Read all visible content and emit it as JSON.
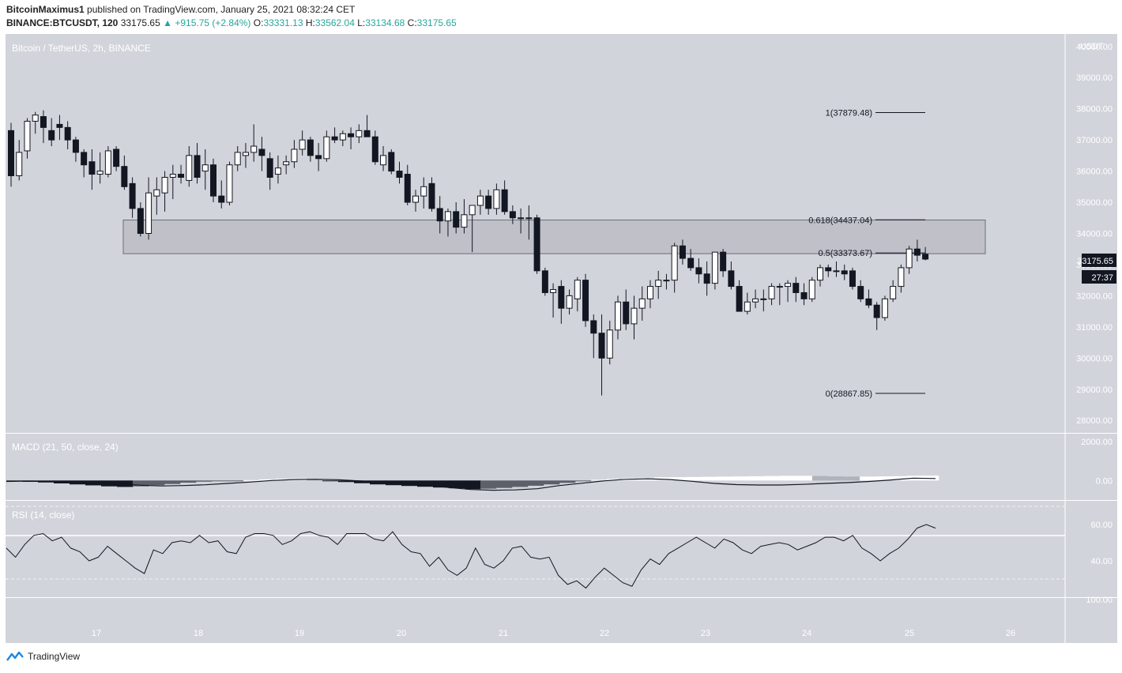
{
  "header": {
    "author": "BitcoinMaximus1",
    "published_text": "published on TradingView.com, January 25, 2021 08:32:24 CET",
    "symbol": "BINANCE:BTCUSDT, 120",
    "last": "33175.65",
    "change": "+915.75 (+2.84%)",
    "o_label": "O:",
    "o": "33331.13",
    "h_label": "H:",
    "h": "33562.04",
    "l_label": "L:",
    "l": "33134.68",
    "c_label": "C:",
    "c": "33175.65"
  },
  "pane_title": "Bitcoin / TetherUS, 2h, BINANCE",
  "price_scale": {
    "currency": "USDT",
    "current_price": "33175.65",
    "countdown": "27:37"
  },
  "macd": {
    "label": "MACD (21, 50, close, 24)",
    "ticks": [
      "2000.00",
      "0.00"
    ]
  },
  "rsi": {
    "label": "RSI (14, close)",
    "ticks": [
      "60.00",
      "40.00",
      "100.00"
    ]
  },
  "footer": {
    "brand": "TradingView"
  },
  "colors": {
    "pane_bg": "#d2d4db",
    "up_body": "#ffffff",
    "down_body": "#131722",
    "zone": "#b9bbc1",
    "price_label": "#131722",
    "change_up": "#26a69a"
  },
  "chart_data": {
    "type": "candlestick",
    "title": "Bitcoin / TetherUS, 2h, BINANCE",
    "x_ticks": [
      "17",
      "18",
      "19",
      "20",
      "21",
      "22",
      "23",
      "24",
      "25",
      "26"
    ],
    "y_ticks": [
      "40000.00",
      "39000.00",
      "38000.00",
      "37000.00",
      "36000.00",
      "35000.00",
      "34000.00",
      "33000.00",
      "32000.00",
      "31000.00",
      "30000.00",
      "29000.00",
      "28000.00"
    ],
    "ylim": [
      27600,
      40400
    ],
    "fib_levels": [
      {
        "label": "1(37879.48)",
        "value": 37879.48
      },
      {
        "label": "0.618(34437.04)",
        "value": 34437.04
      },
      {
        "label": "0.5(33373.67)",
        "value": 33373.67
      },
      {
        "label": "0(28867.85)",
        "value": 28867.85
      }
    ],
    "zone": {
      "low": 33350,
      "high": 34430
    },
    "candles": [
      [
        37300,
        37550,
        35500,
        35850
      ],
      [
        35850,
        37000,
        35700,
        36600
      ],
      [
        36650,
        37700,
        36400,
        37600
      ],
      [
        37600,
        37900,
        37200,
        37800
      ],
      [
        37750,
        37950,
        36900,
        37400
      ],
      [
        37300,
        37700,
        36800,
        37000
      ],
      [
        37500,
        37800,
        37000,
        37400
      ],
      [
        37400,
        37600,
        36700,
        37000
      ],
      [
        37000,
        37100,
        36300,
        36600
      ],
      [
        36600,
        36700,
        35800,
        36200
      ],
      [
        36300,
        36700,
        35400,
        35900
      ],
      [
        35900,
        36600,
        35600,
        36000
      ],
      [
        35900,
        36800,
        35800,
        36650
      ],
      [
        36700,
        36800,
        36000,
        36150
      ],
      [
        36150,
        36500,
        35400,
        35500
      ],
      [
        35600,
        35800,
        34500,
        34800
      ],
      [
        34800,
        35000,
        33900,
        34000
      ],
      [
        34000,
        35800,
        33800,
        35300
      ],
      [
        35200,
        35800,
        34600,
        35400
      ],
      [
        35300,
        36000,
        34700,
        35800
      ],
      [
        35800,
        36200,
        35100,
        35900
      ],
      [
        35900,
        36200,
        35600,
        35800
      ],
      [
        35700,
        36800,
        35500,
        36500
      ],
      [
        36500,
        36900,
        35600,
        35800
      ],
      [
        36000,
        36700,
        35400,
        36200
      ],
      [
        36200,
        36400,
        35000,
        35200
      ],
      [
        35200,
        35700,
        34800,
        35000
      ],
      [
        35000,
        36300,
        34900,
        36200
      ],
      [
        36200,
        36800,
        36000,
        36600
      ],
      [
        36500,
        36900,
        36100,
        36600
      ],
      [
        36600,
        37500,
        36300,
        36800
      ],
      [
        36700,
        37100,
        36000,
        36500
      ],
      [
        36400,
        36600,
        35400,
        35800
      ],
      [
        35900,
        36500,
        35600,
        36100
      ],
      [
        36200,
        36500,
        35900,
        36300
      ],
      [
        36300,
        37000,
        36100,
        36700
      ],
      [
        36700,
        37300,
        36500,
        37000
      ],
      [
        37000,
        37100,
        36300,
        36500
      ],
      [
        36500,
        36900,
        36000,
        36400
      ],
      [
        36400,
        37300,
        36300,
        37100
      ],
      [
        37100,
        37400,
        36900,
        37000
      ],
      [
        37000,
        37300,
        36800,
        37200
      ],
      [
        37200,
        37400,
        36700,
        37100
      ],
      [
        37100,
        37500,
        36900,
        37300
      ],
      [
        37300,
        37800,
        37100,
        37100
      ],
      [
        37100,
        37300,
        36200,
        36300
      ],
      [
        36200,
        36800,
        36000,
        36500
      ],
      [
        36600,
        36700,
        35900,
        36000
      ],
      [
        36000,
        36300,
        35600,
        35800
      ],
      [
        35900,
        36200,
        34900,
        35000
      ],
      [
        35000,
        35400,
        34700,
        35200
      ],
      [
        35200,
        35800,
        34800,
        35500
      ],
      [
        35600,
        35800,
        34700,
        34800
      ],
      [
        34800,
        35200,
        34000,
        34400
      ],
      [
        34400,
        34800,
        33900,
        34700
      ],
      [
        34700,
        35000,
        34000,
        34200
      ],
      [
        34200,
        35100,
        34000,
        34600
      ],
      [
        34600,
        34900,
        33400,
        34900
      ],
      [
        34900,
        35400,
        34600,
        35200
      ],
      [
        35200,
        35400,
        34600,
        34800
      ],
      [
        34800,
        35600,
        34600,
        35400
      ],
      [
        35400,
        35700,
        34600,
        34700
      ],
      [
        34700,
        34900,
        34300,
        34500
      ],
      [
        34500,
        34800,
        34000,
        34500
      ],
      [
        34500,
        34900,
        33800,
        34500
      ],
      [
        34500,
        34600,
        32700,
        32800
      ],
      [
        32800,
        32900,
        32000,
        32100
      ],
      [
        32100,
        32400,
        31300,
        32200
      ],
      [
        32300,
        32500,
        31100,
        31600
      ],
      [
        31600,
        32200,
        31400,
        32000
      ],
      [
        31900,
        32600,
        31500,
        32500
      ],
      [
        32500,
        32700,
        31000,
        31200
      ],
      [
        31200,
        31400,
        30000,
        30800
      ],
      [
        30800,
        31400,
        28800,
        30000
      ],
      [
        30000,
        31200,
        29800,
        30900
      ],
      [
        30900,
        32000,
        30600,
        31800
      ],
      [
        31800,
        32200,
        30900,
        31100
      ],
      [
        31100,
        32000,
        30600,
        31600
      ],
      [
        31600,
        32300,
        31200,
        31900
      ],
      [
        31900,
        32500,
        31600,
        32300
      ],
      [
        32300,
        32800,
        31900,
        32500
      ],
      [
        32500,
        32700,
        32200,
        32500
      ],
      [
        32500,
        33700,
        32100,
        33600
      ],
      [
        33600,
        33800,
        33000,
        33200
      ],
      [
        33200,
        33500,
        32800,
        32900
      ],
      [
        32900,
        33200,
        32400,
        32700
      ],
      [
        32700,
        33100,
        32000,
        32400
      ],
      [
        32400,
        33400,
        32200,
        33400
      ],
      [
        33400,
        33500,
        32600,
        32800
      ],
      [
        32800,
        33100,
        32200,
        32300
      ],
      [
        32300,
        32500,
        31500,
        31500
      ],
      [
        31500,
        32100,
        31400,
        31800
      ],
      [
        31800,
        32200,
        31600,
        31900
      ],
      [
        31900,
        32200,
        31500,
        31900
      ],
      [
        31900,
        32400,
        31700,
        32300
      ],
      [
        32300,
        32400,
        31700,
        32300
      ],
      [
        32300,
        32500,
        31800,
        32400
      ],
      [
        32400,
        32600,
        31800,
        32100
      ],
      [
        32100,
        32400,
        31700,
        31900
      ],
      [
        31900,
        32600,
        31800,
        32500
      ],
      [
        32500,
        33000,
        32300,
        32900
      ],
      [
        32900,
        33000,
        32600,
        32800
      ],
      [
        32800,
        33100,
        32600,
        32800
      ],
      [
        32800,
        33000,
        32500,
        32700
      ],
      [
        32800,
        32900,
        32200,
        32300
      ],
      [
        32300,
        32500,
        31800,
        31900
      ],
      [
        31900,
        32200,
        31600,
        31700
      ],
      [
        31700,
        31800,
        30900,
        31300
      ],
      [
        31300,
        32000,
        31200,
        31900
      ],
      [
        31900,
        32500,
        31800,
        32300
      ],
      [
        32300,
        33000,
        32100,
        32900
      ],
      [
        32900,
        33600,
        32700,
        33500
      ],
      [
        33500,
        33800,
        33100,
        33300
      ],
      [
        33331.13,
        33562.04,
        33134.68,
        33175.65
      ]
    ],
    "macd": {
      "ylim": [
        -1000,
        2400
      ],
      "line": [
        -50,
        -30,
        -40,
        -70,
        -120,
        -170,
        -240,
        -280,
        -260,
        -220,
        -150,
        -80,
        0,
        50,
        60,
        40,
        -20,
        -80,
        -150,
        -260,
        -360,
        -460,
        -500,
        -480,
        -420,
        -260,
        -140,
        -20,
        60,
        90,
        50,
        -40,
        -150,
        -210,
        -230,
        -230,
        -200,
        -150,
        -110,
        -50,
        30,
        120,
        100
      ],
      "hist": [
        -50,
        -70,
        -100,
        -150,
        -200,
        -250,
        -300,
        -330,
        -300,
        -240,
        -180,
        -110,
        -60,
        -30,
        -10,
        20,
        60,
        90,
        110,
        50,
        -20,
        -80,
        -140,
        -200,
        -240,
        -280,
        -320,
        -360,
        -400,
        -440,
        -420,
        -380,
        -330,
        -270,
        -200,
        -120,
        -30,
        40,
        80,
        120,
        140,
        160,
        170,
        180,
        190,
        200,
        210,
        220,
        230,
        240,
        240,
        230,
        210,
        200,
        200,
        210,
        220,
        240,
        250
      ]
    },
    "rsi": {
      "ylim": [
        0,
        100
      ],
      "values": [
        47,
        42,
        49,
        54,
        55,
        51,
        53,
        47,
        45,
        40,
        42,
        48,
        44,
        40,
        36,
        33,
        46,
        44,
        50,
        51,
        50,
        54,
        50,
        51,
        45,
        44,
        53,
        55,
        55,
        54,
        49,
        51,
        55,
        56,
        54,
        53,
        49,
        55,
        55,
        55,
        52,
        51,
        56,
        49,
        45,
        44,
        37,
        42,
        35,
        32,
        36,
        47,
        38,
        36,
        40,
        47,
        48,
        42,
        41,
        42,
        32,
        27,
        29,
        25,
        31,
        36,
        32,
        28,
        26,
        35,
        41,
        38,
        44,
        47,
        50,
        53,
        50,
        47,
        52,
        50,
        46,
        44,
        48,
        49,
        50,
        49,
        46,
        48,
        50,
        53,
        53,
        51,
        54,
        47,
        44,
        40,
        44,
        47,
        52,
        58,
        60,
        58
      ]
    }
  }
}
